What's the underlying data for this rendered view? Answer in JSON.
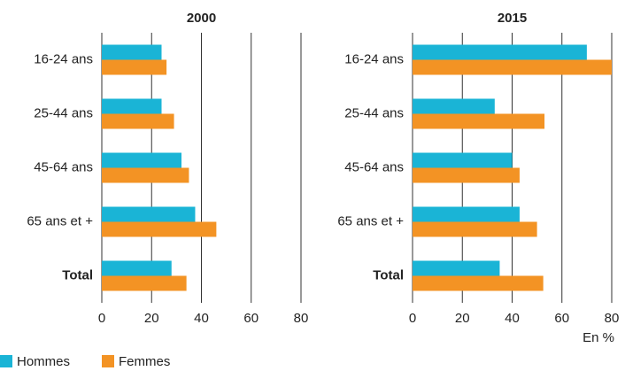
{
  "chart_data": [
    {
      "type": "bar",
      "title": "2000",
      "categories": [
        "16-24 ans",
        "25-44 ans",
        "45-64 ans",
        "65 ans et +",
        "Total"
      ],
      "series": [
        {
          "name": "Hommes",
          "color": "#1ab4d6",
          "values": [
            24,
            24,
            32,
            37.5,
            28
          ]
        },
        {
          "name": "Femmes",
          "color": "#f39324",
          "values": [
            26,
            29,
            35,
            46,
            34
          ]
        }
      ],
      "xlim": [
        0,
        80
      ],
      "xticks": [
        0,
        20,
        40,
        60,
        80
      ],
      "grid": true
    },
    {
      "type": "bar",
      "title": "2015",
      "categories": [
        "16-24 ans",
        "25-44 ans",
        "45-64 ans",
        "65 ans et +",
        "Total"
      ],
      "series": [
        {
          "name": "Hommes",
          "color": "#1ab4d6",
          "values": [
            70,
            33,
            40,
            43,
            35
          ]
        },
        {
          "name": "Femmes",
          "color": "#f39324",
          "values": [
            80,
            53,
            43,
            50,
            52.5
          ]
        }
      ],
      "xlim": [
        0,
        80
      ],
      "xticks": [
        0,
        20,
        40,
        60,
        80
      ],
      "grid": true,
      "annotation": "En %"
    }
  ]
}
